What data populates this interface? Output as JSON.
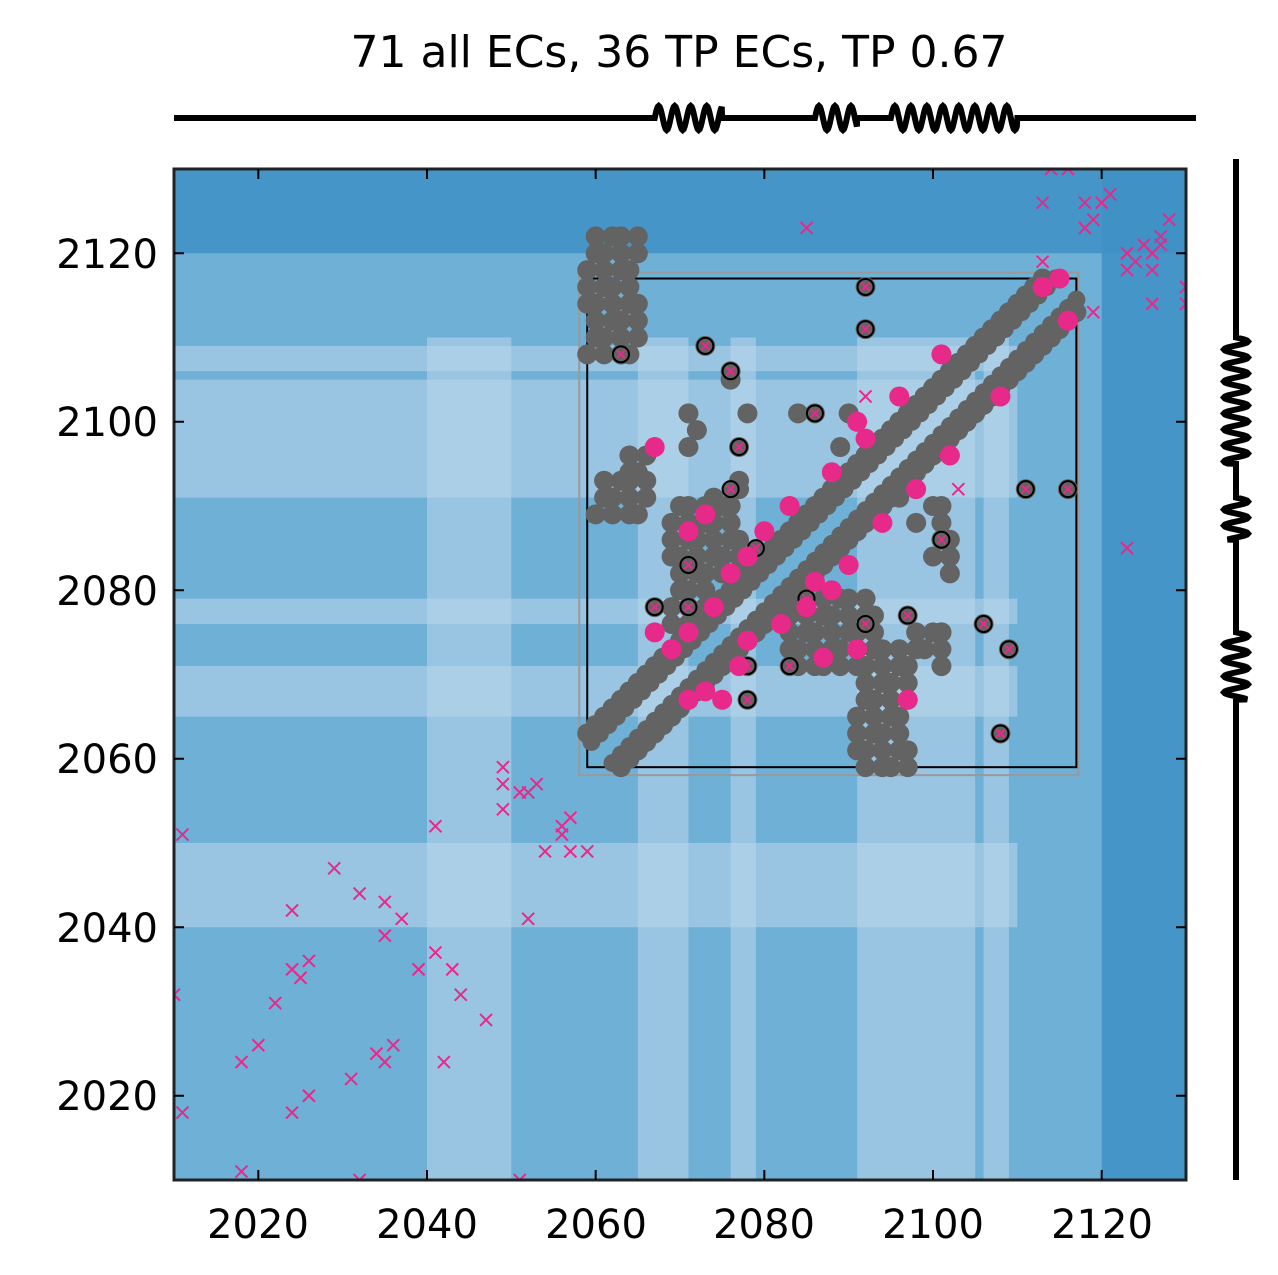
{
  "chart_data": {
    "type": "scatter",
    "title": "71 all ECs, 36 TP ECs, TP 0.67",
    "xlabel": "",
    "ylabel": "",
    "xlim": [
      2010,
      2130
    ],
    "ylim": [
      2010,
      2130
    ],
    "x_ticks": [
      "2020",
      "2040",
      "2060",
      "2080",
      "2100",
      "2120"
    ],
    "y_ticks": [
      "2020",
      "2040",
      "2060",
      "2080",
      "2100",
      "2120"
    ],
    "grid": false,
    "legend": "none",
    "colors": {
      "tp_contact": "#e7298a",
      "native_contact": "#636363",
      "background_dark": "#4090c5",
      "background_mid": "#6fb0d7",
      "background_light": "#bcd7ec"
    },
    "secondary_structure_helices": [
      [
        2067,
        2075
      ],
      [
        2086,
        2091
      ],
      [
        2095,
        2110
      ]
    ],
    "boxes": [
      [
        2059,
        2117,
        2059,
        2117
      ]
    ],
    "tp_contacts": [
      [
        2067,
        2097
      ],
      [
        2071,
        2087
      ],
      [
        2073,
        2089
      ],
      [
        2076,
        2082
      ],
      [
        2078,
        2084
      ],
      [
        2080,
        2087
      ],
      [
        2083,
        2090
      ],
      [
        2088,
        2094
      ],
      [
        2092,
        2098
      ],
      [
        2096,
        2103
      ],
      [
        2101,
        2108
      ],
      [
        2113,
        2116
      ],
      [
        2115,
        2117
      ],
      [
        2116,
        2112
      ],
      [
        2067,
        2075
      ],
      [
        2069,
        2073
      ],
      [
        2071,
        2075
      ],
      [
        2074,
        2078
      ],
      [
        2077,
        2071
      ],
      [
        2078,
        2074
      ],
      [
        2082,
        2076
      ],
      [
        2085,
        2078
      ],
      [
        2086,
        2081
      ],
      [
        2088,
        2080
      ],
      [
        2090,
        2083
      ],
      [
        2094,
        2088
      ],
      [
        2098,
        2092
      ],
      [
        2102,
        2096
      ],
      [
        2108,
        2103
      ],
      [
        2087,
        2072
      ],
      [
        2091,
        2073
      ],
      [
        2097,
        2067
      ],
      [
        2071,
        2067
      ],
      [
        2073,
        2068
      ],
      [
        2075,
        2067
      ],
      [
        2091,
        2100
      ]
    ],
    "native_contact_bands": [
      [
        2059,
        2065,
        2116,
        2122
      ],
      [
        2059,
        2065,
        2108,
        2114
      ],
      [
        2064,
        2066,
        2094,
        2097
      ],
      [
        2060,
        2066,
        2089,
        2093
      ],
      [
        2069,
        2077,
        2082,
        2090
      ],
      [
        2069,
        2073,
        2076,
        2080
      ],
      [
        2083,
        2093,
        2071,
        2079
      ],
      [
        2091,
        2097,
        2059,
        2074
      ],
      [
        2100,
        2102,
        2084,
        2091
      ],
      [
        2098,
        2101,
        2073,
        2076
      ]
    ],
    "native_contacts_extra": [
      [
        2071,
        2101
      ],
      [
        2072,
        2099
      ],
      [
        2071,
        2097
      ],
      [
        2074,
        2091
      ],
      [
        2077,
        2093
      ],
      [
        2076,
        2105
      ],
      [
        2078,
        2101
      ],
      [
        2089,
        2097
      ],
      [
        2090,
        2101
      ],
      [
        2084,
        2101
      ],
      [
        2092,
        2111
      ],
      [
        2092,
        2116
      ],
      [
        2063,
        2108
      ],
      [
        2073,
        2109
      ],
      [
        2076,
        2106
      ],
      [
        2077,
        2097
      ],
      [
        2077,
        2092
      ],
      [
        2071,
        2083
      ],
      [
        2086,
        2101
      ],
      [
        2111,
        2092
      ],
      [
        2116,
        2092
      ],
      [
        2101,
        2086
      ],
      [
        2097,
        2077
      ],
      [
        2106,
        2076
      ],
      [
        2109,
        2073
      ],
      [
        2108,
        2063
      ],
      [
        2101,
        2075
      ],
      [
        2101,
        2071
      ],
      [
        2097,
        2071
      ],
      [
        2102,
        2082
      ],
      [
        2098,
        2088
      ],
      [
        2096,
        2091
      ],
      [
        2067,
        2078
      ],
      [
        2071,
        2078
      ],
      [
        2078,
        2071
      ],
      [
        2078,
        2067
      ],
      [
        2083,
        2071
      ]
    ],
    "native_contacts_marked": [
      [
        2063,
        2108
      ],
      [
        2073,
        2109
      ],
      [
        2076,
        2106
      ],
      [
        2077,
        2097
      ],
      [
        2076,
        2092
      ],
      [
        2071,
        2083
      ],
      [
        2067,
        2078
      ],
      [
        2071,
        2078
      ],
      [
        2078,
        2071
      ],
      [
        2078,
        2067
      ],
      [
        2083,
        2071
      ],
      [
        2079,
        2085
      ],
      [
        2086,
        2101
      ],
      [
        2085,
        2079
      ],
      [
        2092,
        2111
      ],
      [
        2092,
        2116
      ],
      [
        2111,
        2092
      ],
      [
        2116,
        2092
      ],
      [
        2101,
        2086
      ],
      [
        2097,
        2077
      ],
      [
        2106,
        2076
      ],
      [
        2109,
        2073
      ],
      [
        2108,
        2063
      ],
      [
        2092,
        2076
      ]
    ],
    "predicted_ecs": [
      [
        2011,
        2051
      ],
      [
        2010,
        2032
      ],
      [
        2011,
        2018
      ],
      [
        2018,
        2024
      ],
      [
        2020,
        2026
      ],
      [
        2022,
        2031
      ],
      [
        2024,
        2035
      ],
      [
        2024,
        2018
      ],
      [
        2025,
        2034
      ],
      [
        2026,
        2020
      ],
      [
        2026,
        2036
      ],
      [
        2024,
        2042
      ],
      [
        2029,
        2047
      ],
      [
        2031,
        2022
      ],
      [
        2032,
        2044
      ],
      [
        2034,
        2025
      ],
      [
        2035,
        2024
      ],
      [
        2035,
        2039
      ],
      [
        2035,
        2043
      ],
      [
        2036,
        2026
      ],
      [
        2037,
        2041
      ],
      [
        2039,
        2035
      ],
      [
        2041,
        2037
      ],
      [
        2041,
        2052
      ],
      [
        2042,
        2024
      ],
      [
        2043,
        2035
      ],
      [
        2044,
        2032
      ],
      [
        2047,
        2029
      ],
      [
        2049,
        2054
      ],
      [
        2049,
        2057
      ],
      [
        2049,
        2059
      ],
      [
        2051,
        2056
      ],
      [
        2052,
        2041
      ],
      [
        2052,
        2056
      ],
      [
        2053,
        2057
      ],
      [
        2054,
        2049
      ],
      [
        2056,
        2051
      ],
      [
        2056,
        2052
      ],
      [
        2057,
        2053
      ],
      [
        2057,
        2049
      ],
      [
        2059,
        2049
      ],
      [
        2018,
        2011
      ],
      [
        2032,
        2010
      ],
      [
        2051,
        2010
      ],
      [
        2085,
        2123
      ],
      [
        2092,
        2103
      ],
      [
        2103,
        2092
      ],
      [
        2113,
        2119
      ],
      [
        2113,
        2126
      ],
      [
        2114,
        2130
      ],
      [
        2116,
        2130
      ],
      [
        2118,
        2123
      ],
      [
        2118,
        2126
      ],
      [
        2119,
        2113
      ],
      [
        2119,
        2124
      ],
      [
        2120,
        2126
      ],
      [
        2121,
        2127
      ],
      [
        2123,
        2118
      ],
      [
        2123,
        2085
      ],
      [
        2123,
        2120
      ],
      [
        2124,
        2119
      ],
      [
        2125,
        2121
      ],
      [
        2126,
        2114
      ],
      [
        2126,
        2118
      ],
      [
        2126,
        2120
      ],
      [
        2127,
        2121
      ],
      [
        2127,
        2122
      ],
      [
        2128,
        2124
      ],
      [
        2130,
        2114
      ],
      [
        2130,
        2116
      ]
    ]
  }
}
